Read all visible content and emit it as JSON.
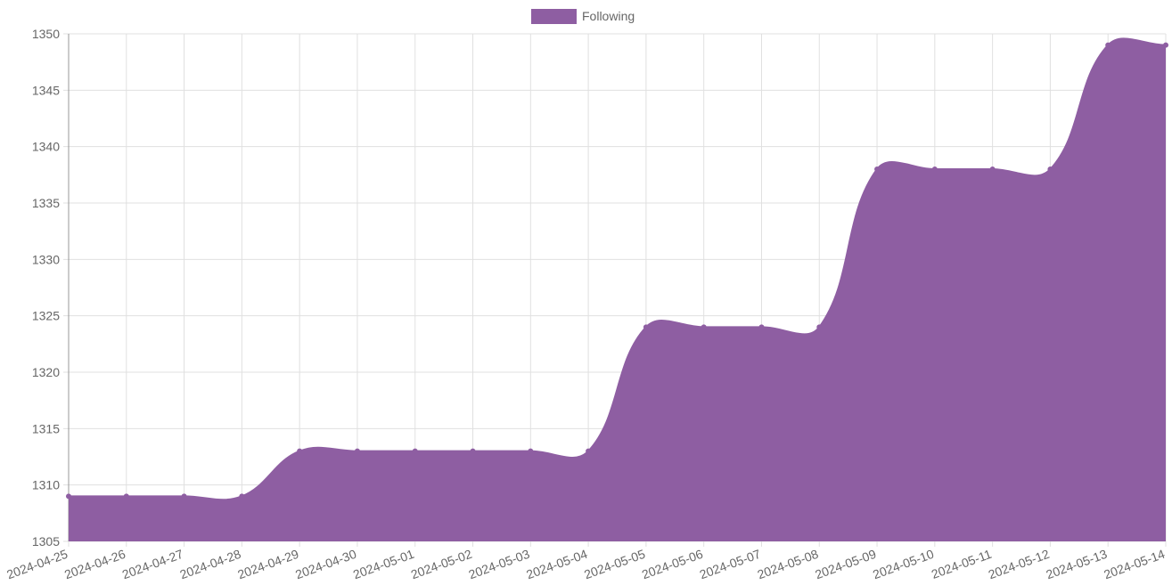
{
  "chart_data": {
    "type": "area",
    "categories": [
      "2024-04-25",
      "2024-04-26",
      "2024-04-27",
      "2024-04-28",
      "2024-04-29",
      "2024-04-30",
      "2024-05-01",
      "2024-05-02",
      "2024-05-03",
      "2024-05-04",
      "2024-05-05",
      "2024-05-06",
      "2024-05-07",
      "2024-05-08",
      "2024-05-09",
      "2024-05-10",
      "2024-05-11",
      "2024-05-12",
      "2024-05-13",
      "2024-05-14"
    ],
    "series": [
      {
        "name": "Following",
        "color": "#8e5ea2",
        "values": [
          1309,
          1309,
          1309,
          1309,
          1313,
          1313,
          1313,
          1313,
          1313,
          1313,
          1324,
          1324,
          1324,
          1324,
          1338,
          1338,
          1338,
          1338,
          1349,
          1349
        ]
      }
    ],
    "ylim": [
      1305,
      1350
    ],
    "yticks": [
      1305,
      1310,
      1315,
      1320,
      1325,
      1330,
      1335,
      1340,
      1345,
      1350
    ],
    "grid": true,
    "legend": "top"
  }
}
